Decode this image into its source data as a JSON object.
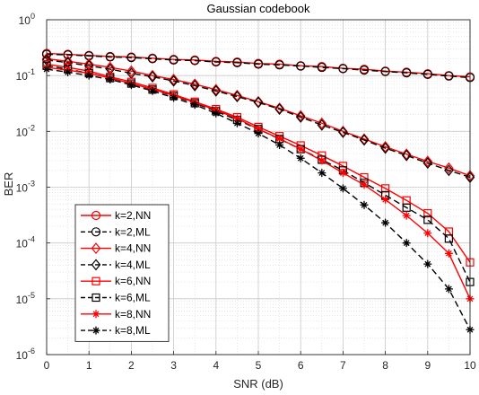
{
  "chart_data": {
    "type": "line",
    "title": "Gaussian codebook",
    "xlabel": "SNR (dB)",
    "ylabel": "BER",
    "xlim": [
      0,
      10
    ],
    "ylim": [
      1e-06,
      1
    ],
    "yscale": "log",
    "grid": true,
    "minor_grid": true,
    "legend_position": "bottom-left",
    "x_ticks": [
      0,
      1,
      2,
      3,
      4,
      5,
      6,
      7,
      8,
      9,
      10
    ],
    "x_tick_labels": [
      "0",
      "1",
      "2",
      "3",
      "4",
      "5",
      "6",
      "7",
      "8",
      "9",
      "10"
    ],
    "y_ticks": [
      {
        "value": 1e-06,
        "base": "10",
        "exp": "-6"
      },
      {
        "value": 1e-05,
        "base": "10",
        "exp": "-5"
      },
      {
        "value": 0.0001,
        "base": "10",
        "exp": "-4"
      },
      {
        "value": 0.001,
        "base": "10",
        "exp": "-3"
      },
      {
        "value": 0.01,
        "base": "10",
        "exp": "-2"
      },
      {
        "value": 0.1,
        "base": "10",
        "exp": "-1"
      },
      {
        "value": 1,
        "base": "10",
        "exp": "0"
      }
    ],
    "marker_x": [
      0,
      0.5,
      1,
      1.5,
      2,
      2.5,
      3,
      3.5,
      4,
      4.5,
      5,
      5.5,
      6,
      6.5,
      7,
      7.5,
      8,
      8.5,
      9,
      9.5,
      10
    ],
    "series": [
      {
        "name": "k=2,NN",
        "color": "#ff0000",
        "dash": "solid",
        "marker": "circle",
        "x": [
          0,
          0.5,
          1,
          1.5,
          2,
          2.5,
          3,
          3.5,
          4,
          4.5,
          5,
          5.5,
          6,
          6.5,
          7,
          7.5,
          8,
          8.5,
          9,
          9.5,
          10
        ],
        "y": [
          0.25,
          0.24,
          0.23,
          0.22,
          0.215,
          0.205,
          0.195,
          0.19,
          0.18,
          0.175,
          0.165,
          0.16,
          0.15,
          0.145,
          0.135,
          0.13,
          0.12,
          0.115,
          0.108,
          0.1,
          0.095
        ]
      },
      {
        "name": "k=2,ML",
        "color": "#000000",
        "dash": "dashed",
        "marker": "circle",
        "x": [
          0,
          0.5,
          1,
          1.5,
          2,
          2.5,
          3,
          3.5,
          4,
          4.5,
          5,
          5.5,
          6,
          6.5,
          7,
          7.5,
          8,
          8.5,
          9,
          9.5,
          10
        ],
        "y": [
          0.24,
          0.235,
          0.225,
          0.215,
          0.21,
          0.2,
          0.19,
          0.185,
          0.175,
          0.17,
          0.16,
          0.155,
          0.148,
          0.14,
          0.133,
          0.125,
          0.118,
          0.112,
          0.105,
          0.098,
          0.092
        ]
      },
      {
        "name": "k=4,NN",
        "color": "#ff0000",
        "dash": "solid",
        "marker": "diamond",
        "x": [
          0,
          0.5,
          1,
          1.5,
          2,
          2.5,
          3,
          3.5,
          4,
          4.5,
          5,
          5.5,
          6,
          6.5,
          7,
          7.5,
          8,
          8.5,
          9,
          9.5,
          10
        ],
        "y": [
          0.2,
          0.18,
          0.16,
          0.14,
          0.12,
          0.1,
          0.085,
          0.07,
          0.056,
          0.044,
          0.034,
          0.026,
          0.019,
          0.014,
          0.01,
          0.0073,
          0.0053,
          0.0039,
          0.0029,
          0.0022,
          0.0016
        ]
      },
      {
        "name": "k=4,ML",
        "color": "#000000",
        "dash": "dashed",
        "marker": "diamond",
        "x": [
          0,
          0.5,
          1,
          1.5,
          2,
          2.5,
          3,
          3.5,
          4,
          4.5,
          5,
          5.5,
          6,
          6.5,
          7,
          7.5,
          8,
          8.5,
          9,
          9.5,
          10
        ],
        "y": [
          0.19,
          0.17,
          0.15,
          0.13,
          0.11,
          0.095,
          0.08,
          0.066,
          0.053,
          0.042,
          0.033,
          0.025,
          0.018,
          0.013,
          0.0096,
          0.007,
          0.005,
          0.0037,
          0.0027,
          0.002,
          0.0015
        ]
      },
      {
        "name": "k=6,NN",
        "color": "#ff0000",
        "dash": "solid",
        "marker": "square",
        "x": [
          0,
          0.5,
          1,
          1.5,
          2,
          2.5,
          3,
          3.5,
          4,
          4.5,
          5,
          5.5,
          6,
          6.5,
          7,
          7.5,
          8,
          8.5,
          9,
          9.5,
          10
        ],
        "y": [
          0.16,
          0.14,
          0.12,
          0.095,
          0.077,
          0.06,
          0.046,
          0.034,
          0.025,
          0.018,
          0.012,
          0.0082,
          0.0056,
          0.0037,
          0.0024,
          0.0015,
          0.00095,
          0.00058,
          0.00034,
          0.00016,
          4.5e-05
        ]
      },
      {
        "name": "k=6,ML",
        "color": "#000000",
        "dash": "dashed",
        "marker": "square",
        "x": [
          0,
          0.5,
          1,
          1.5,
          2,
          2.5,
          3,
          3.5,
          4,
          4.5,
          5,
          5.5,
          6,
          6.5,
          7,
          7.5,
          8,
          8.5,
          9,
          9.5,
          10
        ],
        "y": [
          0.15,
          0.13,
          0.11,
          0.09,
          0.072,
          0.056,
          0.043,
          0.032,
          0.023,
          0.016,
          0.011,
          0.0073,
          0.0048,
          0.0031,
          0.002,
          0.0012,
          0.00072,
          0.00043,
          0.00026,
          0.00012,
          2e-05
        ]
      },
      {
        "name": "k=8,NN",
        "color": "#ff0000",
        "dash": "solid",
        "marker": "asterisk",
        "x": [
          0,
          0.5,
          1,
          1.5,
          2,
          2.5,
          3,
          3.5,
          4,
          4.5,
          5,
          5.5,
          6,
          6.5,
          7,
          7.5,
          8,
          8.5,
          9,
          9.5,
          10
        ],
        "y": [
          0.14,
          0.125,
          0.11,
          0.09,
          0.072,
          0.057,
          0.044,
          0.033,
          0.024,
          0.017,
          0.011,
          0.0074,
          0.0048,
          0.003,
          0.0018,
          0.0011,
          0.0006,
          0.00031,
          0.00015,
          6.5e-05,
          1e-05
        ]
      },
      {
        "name": "k=8,ML",
        "color": "#000000",
        "dash": "dashed",
        "marker": "asterisk",
        "x": [
          0,
          0.5,
          1,
          1.5,
          2,
          2.5,
          3,
          3.5,
          4,
          4.5,
          5,
          5.5,
          6,
          6.5,
          7,
          7.5,
          8,
          8.5,
          9,
          9.5,
          10
        ],
        "y": [
          0.13,
          0.115,
          0.1,
          0.085,
          0.068,
          0.053,
          0.04,
          0.03,
          0.021,
          0.014,
          0.0092,
          0.0057,
          0.0033,
          0.0018,
          0.00095,
          0.00048,
          0.00023,
          0.0001,
          4.2e-05,
          1.5e-05,
          2.8e-06
        ]
      }
    ]
  }
}
